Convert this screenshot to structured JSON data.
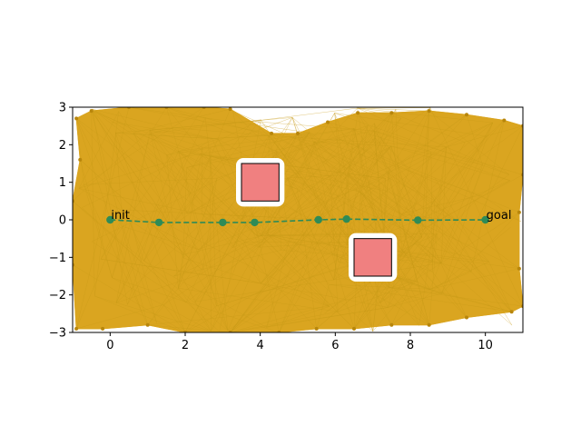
{
  "chart_data": {
    "type": "line",
    "title": "",
    "xlabel": "",
    "ylabel": "",
    "xlim": [
      -1,
      11
    ],
    "ylim": [
      -3,
      3
    ],
    "xticks": [
      0,
      2,
      4,
      6,
      8,
      10
    ],
    "yticks": [
      -3,
      -2,
      -1,
      0,
      1,
      2,
      3
    ],
    "grid": false,
    "legend": "none",
    "colors": {
      "roadmap": "#DAA520",
      "obstacle_fill": "#F08080",
      "obstacle_edge": "#000000",
      "path": "#2E8B57"
    },
    "obstacles": [
      {
        "x": [
          3.5,
          4.5
        ],
        "y": [
          0.5,
          1.5
        ]
      },
      {
        "x": [
          6.5,
          7.5
        ],
        "y": [
          -1.5,
          -0.5
        ]
      }
    ],
    "path": {
      "x": [
        0,
        1.3,
        3.0,
        3.85,
        5.55,
        6.3,
        8.2,
        10.0
      ],
      "y": [
        0,
        -0.07,
        -0.07,
        -0.07,
        0.0,
        0.02,
        -0.01,
        0
      ]
    },
    "annotations": [
      {
        "text": "init",
        "x": 0,
        "y": 0
      },
      {
        "text": "goal",
        "x": 10,
        "y": 0
      }
    ],
    "roadmap_boundary_nodes": [
      {
        "x": -0.9,
        "y": 2.7
      },
      {
        "x": -0.5,
        "y": 2.9
      },
      {
        "x": 0.5,
        "y": 3.0
      },
      {
        "x": 1.5,
        "y": 3.0
      },
      {
        "x": 2.5,
        "y": 3.0
      },
      {
        "x": 3.2,
        "y": 2.95
      },
      {
        "x": 4.3,
        "y": 2.3
      },
      {
        "x": 5.0,
        "y": 2.3
      },
      {
        "x": 5.8,
        "y": 2.6
      },
      {
        "x": 6.6,
        "y": 2.85
      },
      {
        "x": 7.5,
        "y": 2.85
      },
      {
        "x": 8.5,
        "y": 2.9
      },
      {
        "x": 9.5,
        "y": 2.8
      },
      {
        "x": 10.5,
        "y": 2.65
      },
      {
        "x": 11.0,
        "y": 2.5
      },
      {
        "x": 11.0,
        "y": 1.2
      },
      {
        "x": 10.9,
        "y": 0.2
      },
      {
        "x": 10.9,
        "y": -1.3
      },
      {
        "x": 11.0,
        "y": -2.3
      },
      {
        "x": 10.7,
        "y": -2.45
      },
      {
        "x": 9.5,
        "y": -2.6
      },
      {
        "x": 8.5,
        "y": -2.8
      },
      {
        "x": 7.5,
        "y": -2.8
      },
      {
        "x": 6.5,
        "y": -2.9
      },
      {
        "x": 5.5,
        "y": -2.9
      },
      {
        "x": 4.5,
        "y": -3.0
      },
      {
        "x": 3.2,
        "y": -3.0
      },
      {
        "x": 2.0,
        "y": -3.0
      },
      {
        "x": 1.0,
        "y": -2.8
      },
      {
        "x": -0.2,
        "y": -2.9
      },
      {
        "x": -0.9,
        "y": -2.9
      },
      {
        "x": -1.0,
        "y": -1.2
      },
      {
        "x": -1.0,
        "y": 0.5
      },
      {
        "x": -0.8,
        "y": 1.6
      }
    ]
  }
}
